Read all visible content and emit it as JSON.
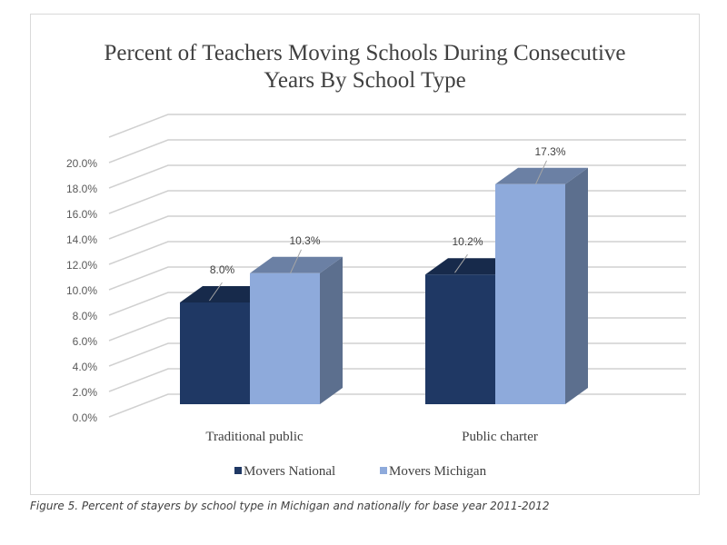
{
  "chart_data": {
    "type": "bar",
    "title": [
      "Percent of Teachers Moving Schools During Consecutive",
      "Years By School Type"
    ],
    "categories": [
      "Traditional public",
      "Public charter"
    ],
    "series": [
      {
        "name": "Movers National",
        "values": [
          8.0,
          10.2
        ],
        "labels": [
          "8.0%",
          "10.2%"
        ],
        "color": "#1f3864"
      },
      {
        "name": "Movers Michigan",
        "values": [
          10.3,
          17.3
        ],
        "labels": [
          "10.3%",
          "17.3%"
        ],
        "color": "#8eaadb"
      }
    ],
    "yticks": [
      "0.0%",
      "2.0%",
      "4.0%",
      "6.0%",
      "8.0%",
      "10.0%",
      "12.0%",
      "14.0%",
      "16.0%",
      "18.0%",
      "20.0%"
    ],
    "ylim": [
      0,
      22
    ],
    "grid": true,
    "legend": "bottom",
    "xlabel": "",
    "ylabel": ""
  },
  "caption": "Figure 5. Percent of stayers by school type in Michigan and nationally for base year 2011-2012"
}
